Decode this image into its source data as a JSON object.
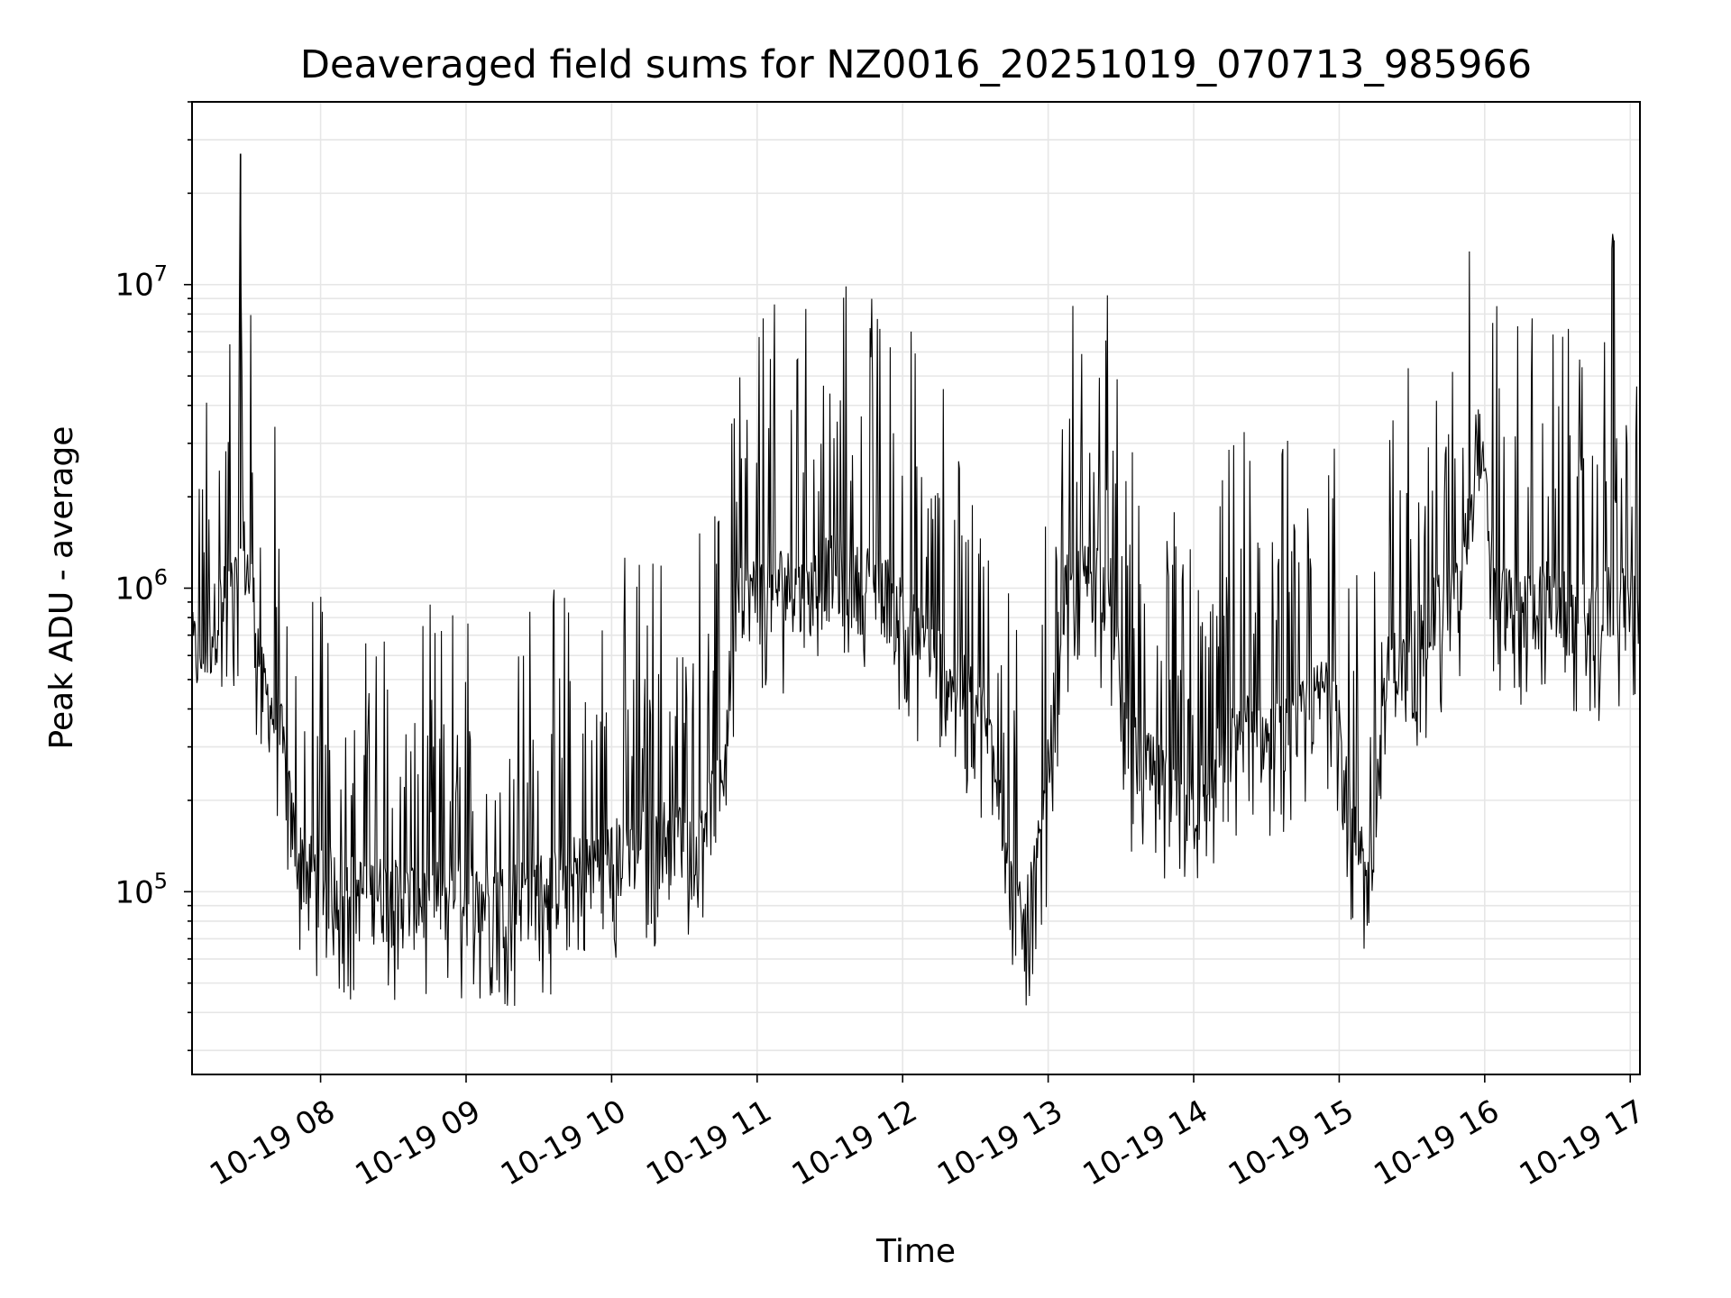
{
  "chart_data": {
    "type": "line",
    "title": "Deaveraged field sums for NZ0016_20251019_070713_985966",
    "xlabel": "Time",
    "ylabel": "Peak ADU - average",
    "y_scale": "log",
    "xlim": [
      "2025-10-19 07:07",
      "2025-10-19 17:04"
    ],
    "ylim": [
      25000,
      40000000
    ],
    "grid": true,
    "line_color": "#000000",
    "grid_color": "#e6e6e6",
    "x_ticks": [
      "2025-10-19 08:00",
      "2025-10-19 09:00",
      "2025-10-19 10:00",
      "2025-10-19 11:00",
      "2025-10-19 12:00",
      "2025-10-19 13:00",
      "2025-10-19 14:00",
      "2025-10-19 15:00",
      "2025-10-19 16:00",
      "2025-10-19 17:00"
    ],
    "x_tick_labels": [
      "10-19 08",
      "10-19 09",
      "10-19 10",
      "10-19 11",
      "10-19 12",
      "10-19 13",
      "10-19 14",
      "10-19 15",
      "10-19 16",
      "10-19 17"
    ],
    "y_tick_values": [
      100000,
      1000000,
      10000000
    ],
    "y_tick_labels": [
      {
        "base": "10",
        "exp": "5"
      },
      {
        "base": "10",
        "exp": "6"
      },
      {
        "base": "10",
        "exp": "7"
      }
    ],
    "series": [
      {
        "x": [
          "2025-10-19 07:07",
          "2025-10-19 07:12",
          "2025-10-19 07:17",
          "2025-10-19 07:22",
          "2025-10-19 07:26",
          "2025-10-19 07:27",
          "2025-10-19 07:28",
          "2025-10-19 07:32",
          "2025-10-19 07:36",
          "2025-10-19 07:40",
          "2025-10-19 07:44",
          "2025-10-19 07:48",
          "2025-10-19 07:52",
          "2025-10-19 07:58",
          "2025-10-19 08:05",
          "2025-10-19 08:15",
          "2025-10-19 08:25",
          "2025-10-19 08:35",
          "2025-10-19 08:45",
          "2025-10-19 08:55",
          "2025-10-19 09:05",
          "2025-10-19 09:15",
          "2025-10-19 09:25",
          "2025-10-19 09:35",
          "2025-10-19 09:45",
          "2025-10-19 09:55",
          "2025-10-19 10:05",
          "2025-10-19 10:15",
          "2025-10-19 10:25",
          "2025-10-19 10:35",
          "2025-10-19 10:45",
          "2025-10-19 10:52",
          "2025-10-19 11:00",
          "2025-10-19 11:10",
          "2025-10-19 11:20",
          "2025-10-19 11:30",
          "2025-10-19 11:40",
          "2025-10-19 11:50",
          "2025-10-19 12:00",
          "2025-10-19 12:10",
          "2025-10-19 12:20",
          "2025-10-19 12:30",
          "2025-10-19 12:38",
          "2025-10-19 12:44",
          "2025-10-19 12:50",
          "2025-10-19 12:58",
          "2025-10-19 13:06",
          "2025-10-19 13:14",
          "2025-10-19 13:20",
          "2025-10-19 13:26",
          "2025-10-19 13:32",
          "2025-10-19 13:40",
          "2025-10-19 13:50",
          "2025-10-19 14:00",
          "2025-10-19 14:10",
          "2025-10-19 14:20",
          "2025-10-19 14:30",
          "2025-10-19 14:40",
          "2025-10-19 14:50",
          "2025-10-19 14:58",
          "2025-10-19 15:05",
          "2025-10-19 15:12",
          "2025-10-19 15:20",
          "2025-10-19 15:30",
          "2025-10-19 15:40",
          "2025-10-19 15:50",
          "2025-10-19 15:57",
          "2025-10-19 16:05",
          "2025-10-19 16:15",
          "2025-10-19 16:25",
          "2025-10-19 16:35",
          "2025-10-19 16:45",
          "2025-10-19 16:52",
          "2025-10-19 16:53",
          "2025-10-19 16:54",
          "2025-10-19 17:00",
          "2025-10-19 17:04"
        ],
        "y": [
          600000,
          560000,
          800000,
          900000,
          1000000,
          27000000,
          1300000,
          900000,
          450000,
          380000,
          300000,
          160000,
          120000,
          110000,
          100000,
          95000,
          95000,
          90000,
          90000,
          95000,
          90000,
          90000,
          95000,
          100000,
          110000,
          120000,
          130000,
          140000,
          150000,
          160000,
          200000,
          1000000,
          900000,
          1000000,
          900000,
          1100000,
          1000000,
          1000000,
          800000,
          600000,
          500000,
          400000,
          300000,
          100000,
          70000,
          150000,
          900000,
          1000000,
          1100000,
          900000,
          300000,
          250000,
          200000,
          180000,
          250000,
          350000,
          300000,
          320000,
          400000,
          500000,
          150000,
          100000,
          500000,
          600000,
          800000,
          900000,
          3200000,
          900000,
          800000,
          900000,
          800000,
          700000,
          900000,
          14000000,
          900000,
          850000,
          900000
        ]
      }
    ]
  }
}
